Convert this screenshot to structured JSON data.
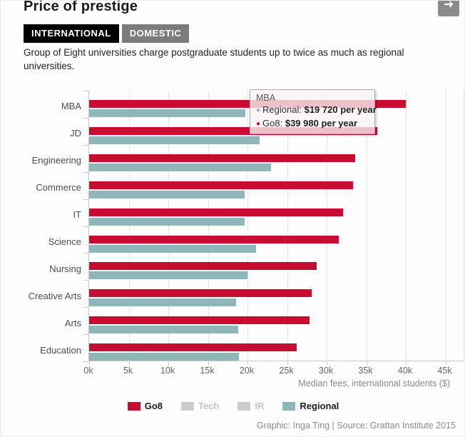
{
  "header": {
    "title": "Price of prestige",
    "tabs": [
      {
        "label": "INTERNATIONAL",
        "active": true
      },
      {
        "label": "DOMESTIC",
        "active": false
      }
    ]
  },
  "description": "Group of Eight universities charge postgraduate students up to twice as much as regional universities.",
  "tooltip": {
    "title": "MBA",
    "rows": [
      {
        "series": "Regional",
        "label": "Regional: ",
        "value": "$19 720 per year",
        "color": "#8fb6b8"
      },
      {
        "series": "Go8",
        "label": "Go8: ",
        "value": "$39 980 per year",
        "color": "#c60c30"
      }
    ]
  },
  "chart_data": {
    "type": "bar",
    "orientation": "horizontal",
    "categories": [
      "MBA",
      "JD",
      "Engineering",
      "Commerce",
      "IT",
      "Science",
      "Nursing",
      "Creative Arts",
      "Arts",
      "Education"
    ],
    "series": [
      {
        "name": "Go8",
        "color": "#c60c30",
        "values": [
          39980,
          36400,
          33600,
          33300,
          32100,
          31500,
          28700,
          28100,
          27800,
          26200
        ]
      },
      {
        "name": "Regional",
        "color": "#8fb6b8",
        "values": [
          19720,
          21500,
          23000,
          19600,
          19600,
          21100,
          20000,
          18600,
          18800,
          18900
        ]
      }
    ],
    "xlabel": "Median fees, international students ($)",
    "x_ticks": [
      "0k",
      "5k",
      "10k",
      "15k",
      "20k",
      "25k",
      "30k",
      "35k",
      "40k",
      "45k"
    ],
    "xlim": [
      0,
      45000
    ],
    "grid": true,
    "legend_position": "bottom",
    "legend": [
      {
        "label": "Go8",
        "color": "#c60c30",
        "active": true
      },
      {
        "label": "Tech",
        "color": "#cccccc",
        "active": false
      },
      {
        "label": "IR",
        "color": "#cccccc",
        "active": false
      },
      {
        "label": "Regional",
        "color": "#8fb6b8",
        "active": true
      }
    ]
  },
  "footer": {
    "credit": "Graphic: Inga Ting | Source: Grattan Institute 2015"
  }
}
